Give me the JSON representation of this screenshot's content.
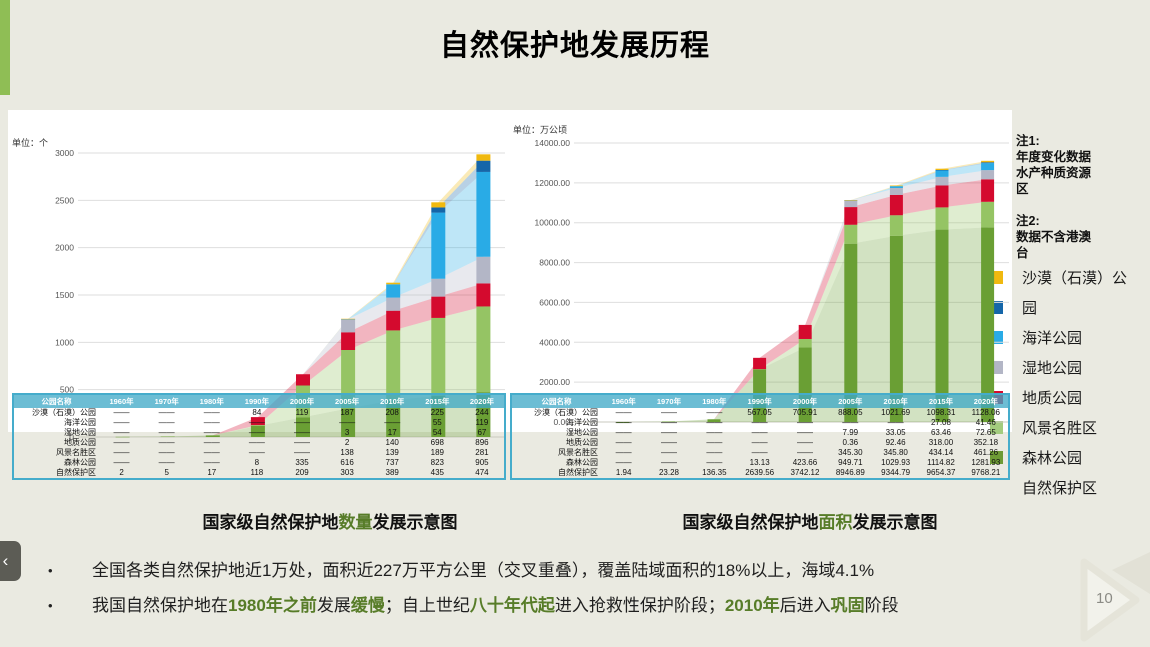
{
  "slide": {
    "title": "自然保护地发展历程",
    "page_number": "10",
    "nav_prev_glyph": "‹"
  },
  "notes": {
    "blocks": [
      {
        "title": "注1:",
        "lines": [
          "年度变化数据",
          "水产种质资源",
          "区"
        ]
      },
      {
        "title": "注2:",
        "lines": [
          "数据不含港澳",
          "台"
        ]
      }
    ]
  },
  "legend": {
    "items": [
      {
        "color": "#F0B90F",
        "label": "沙漠（石漠）公"
      },
      {
        "color": "#1566A9",
        "label": "园"
      },
      {
        "color": "#29ABE6",
        "label": "海洋公园"
      },
      {
        "color": "#B3B6C6",
        "label": "湿地公园"
      },
      {
        "color": "#D40A2E",
        "label": "地质公园"
      },
      {
        "color": "#A3CC7E",
        "label": "风景名胜区"
      },
      {
        "color": "#6E9B35",
        "label": "森林公园"
      },
      {
        "color": null,
        "label": "自然保护区"
      }
    ]
  },
  "captions": {
    "left": {
      "pre": "国家级自然保护地",
      "highlight": "数量",
      "post": "发展示意图"
    },
    "right": {
      "pre": "国家级自然保护地",
      "highlight": "面积",
      "post": "发展示意图"
    }
  },
  "bullets": [
    {
      "segments": [
        {
          "text": "全国各类自然保护地近1万处，面积近227万平方公里（交叉重叠），覆盖陆域面积的18%以上，海域4.1%",
          "green": false
        }
      ]
    },
    {
      "segments": [
        {
          "text": "我国自然保护地在",
          "green": false
        },
        {
          "text": "1980年之前",
          "green": true
        },
        {
          "text": "发展",
          "green": false
        },
        {
          "text": "缓慢",
          "green": true
        },
        {
          "text": "；自上世纪",
          "green": false
        },
        {
          "text": "八十年代起",
          "green": true
        },
        {
          "text": "进入抢救性保护阶段；",
          "green": false
        },
        {
          "text": "2010年",
          "green": true
        },
        {
          "text": "后进入",
          "green": false
        },
        {
          "text": "巩固",
          "green": true
        },
        {
          "text": "阶段",
          "green": false
        }
      ]
    }
  ],
  "chart_data": [
    {
      "type": "area",
      "style": "stacked area with stacked column overlays",
      "title": "国家级自然保护地数量发展示意图",
      "unit_label": "单位：个",
      "categories": [
        "1960年",
        "1970年",
        "1980年",
        "1990年",
        "2000年",
        "2005年",
        "2010年",
        "2015年",
        "2020年"
      ],
      "y_tick_labels": [
        "3000",
        "2500",
        "2000",
        "1500",
        "1000",
        "500",
        "0"
      ],
      "y_tick_values": [
        3000,
        2500,
        2000,
        1500,
        1000,
        500,
        0
      ],
      "ylim": [
        0,
        3000
      ],
      "grid": true,
      "series": [
        {
          "name": "自然保护区",
          "color": "#6A9F34",
          "values": [
            2,
            5,
            17,
            118,
            209,
            303,
            389,
            435,
            474
          ]
        },
        {
          "name": "森林公园",
          "color": "#95C464",
          "values": [
            0,
            0,
            0,
            8,
            335,
            616,
            737,
            823,
            905
          ]
        },
        {
          "name": "沙漠（石漠）公园",
          "color": "#D40A2E",
          "values": [
            0,
            0,
            0,
            84,
            119,
            187,
            208,
            225,
            244
          ]
        },
        {
          "name": "风景名胜区",
          "color": "#B3B6C6",
          "values": [
            0,
            0,
            0,
            0,
            0,
            138,
            139,
            189,
            281
          ]
        },
        {
          "name": "地质公园",
          "color": "#29ABE6",
          "values": [
            0,
            0,
            0,
            0,
            0,
            2,
            140,
            698,
            896
          ]
        },
        {
          "name": "海洋公园",
          "color": "#1566A9",
          "values": [
            0,
            0,
            0,
            0,
            0,
            0,
            0,
            55,
            119
          ]
        },
        {
          "name": "湿地公园",
          "color": "#F0B90F",
          "values": [
            0,
            0,
            0,
            0,
            0,
            3,
            17,
            54,
            67
          ]
        }
      ],
      "table": {
        "header": [
          "公园名称",
          "1960年",
          "1970年",
          "1980年",
          "1990年",
          "2000年",
          "2005年",
          "2010年",
          "2015年",
          "2020年"
        ],
        "rows": [
          {
            "label": "沙漠（石漠）公园",
            "cells": [
              "——",
              "——",
              "——",
              "84",
              "119",
              "187",
              "208",
              "225",
              "244"
            ]
          },
          {
            "label": "海洋公园",
            "cells": [
              "——",
              "——",
              "——",
              "——",
              "——",
              "——",
              "——",
              "55",
              "119"
            ]
          },
          {
            "label": "湿地公园",
            "cells": [
              "——",
              "——",
              "——",
              "——",
              "——",
              "3",
              "17",
              "54",
              "67"
            ]
          },
          {
            "label": "地质公园",
            "cells": [
              "——",
              "——",
              "——",
              "——",
              "——",
              "2",
              "140",
              "698",
              "896"
            ]
          },
          {
            "label": "风景名胜区",
            "cells": [
              "——",
              "——",
              "——",
              "——",
              "——",
              "138",
              "139",
              "189",
              "281"
            ]
          },
          {
            "label": "森林公园",
            "cells": [
              "——",
              "——",
              "——",
              "8",
              "335",
              "616",
              "737",
              "823",
              "905"
            ]
          },
          {
            "label": "自然保护区",
            "cells": [
              "2",
              "5",
              "17",
              "118",
              "209",
              "303",
              "389",
              "435",
              "474"
            ]
          }
        ]
      }
    },
    {
      "type": "area",
      "style": "stacked area with stacked column overlays",
      "title": "国家级自然保护地面积发展示意图",
      "unit_label": "单位：万公顷",
      "categories": [
        "1960年",
        "1970年",
        "1980年",
        "1990年",
        "2000年",
        "2005年",
        "2010年",
        "2015年",
        "2020年"
      ],
      "y_tick_labels": [
        "14000.00",
        "12000.00",
        "10000.00",
        "8000.00",
        "6000.00",
        "4000.00",
        "2000.00",
        "0.00"
      ],
      "y_tick_values": [
        14000,
        12000,
        10000,
        8000,
        6000,
        4000,
        2000,
        0
      ],
      "ylim": [
        0,
        14000
      ],
      "grid": true,
      "series": [
        {
          "name": "自然保护区",
          "color": "#6A9F34",
          "values": [
            1.94,
            23.28,
            136.35,
            2639.56,
            3742.12,
            8946.89,
            9344.79,
            9654.37,
            9768.21
          ]
        },
        {
          "name": "森林公园",
          "color": "#95C464",
          "values": [
            0,
            0,
            0,
            13.13,
            423.66,
            949.71,
            1029.93,
            1114.82,
            1281.93
          ]
        },
        {
          "name": "沙漠（石漠）公园",
          "color": "#D40A2E",
          "values": [
            0,
            0,
            0,
            567.05,
            705.91,
            888.05,
            1021.69,
            1098.31,
            1128.06
          ]
        },
        {
          "name": "风景名胜区",
          "color": "#B3B6C6",
          "values": [
            0,
            0,
            0,
            0,
            0,
            345.3,
            345.8,
            434.14,
            461.26
          ]
        },
        {
          "name": "地质公园",
          "color": "#29ABE6",
          "values": [
            0,
            0,
            0,
            0,
            0,
            0.36,
            92.46,
            318.0,
            352.18
          ]
        },
        {
          "name": "海洋公园",
          "color": "#1566A9",
          "values": [
            0,
            0,
            0,
            0,
            0,
            0,
            0,
            27.08,
            41.46
          ]
        },
        {
          "name": "湿地公园",
          "color": "#F0B90F",
          "values": [
            0,
            0,
            0,
            0,
            0,
            7.99,
            33.05,
            63.46,
            72.65
          ]
        }
      ],
      "table": {
        "header": [
          "公园名称",
          "1960年",
          "1970年",
          "1980年",
          "1990年",
          "2000年",
          "2005年",
          "2010年",
          "2015年",
          "2020年"
        ],
        "rows": [
          {
            "label": "沙漠（石漠）公园",
            "cells": [
              "——",
              "——",
              "——",
              "567.05",
              "705.91",
              "888.05",
              "1021.69",
              "1098.31",
              "1128.06"
            ]
          },
          {
            "label": "海洋公园",
            "cells": [
              "——",
              "——",
              "——",
              "——",
              "——",
              "——",
              "——",
              "27.08",
              "41.46"
            ]
          },
          {
            "label": "湿地公园",
            "cells": [
              "——",
              "——",
              "——",
              "——",
              "——",
              "7.99",
              "33.05",
              "63.46",
              "72.65"
            ]
          },
          {
            "label": "地质公园",
            "cells": [
              "——",
              "——",
              "——",
              "——",
              "——",
              "0.36",
              "92.46",
              "318.00",
              "352.18"
            ]
          },
          {
            "label": "风景名胜区",
            "cells": [
              "——",
              "——",
              "——",
              "——",
              "——",
              "345.30",
              "345.80",
              "434.14",
              "461.26"
            ]
          },
          {
            "label": "森林公园",
            "cells": [
              "——",
              "——",
              "——",
              "13.13",
              "423.66",
              "949.71",
              "1029.93",
              "1114.82",
              "1281.93"
            ]
          },
          {
            "label": "自然保护区",
            "cells": [
              "1.94",
              "23.28",
              "136.35",
              "2639.56",
              "3742.12",
              "8946.89",
              "9344.79",
              "9654.37",
              "9768.21"
            ]
          }
        ]
      }
    }
  ]
}
